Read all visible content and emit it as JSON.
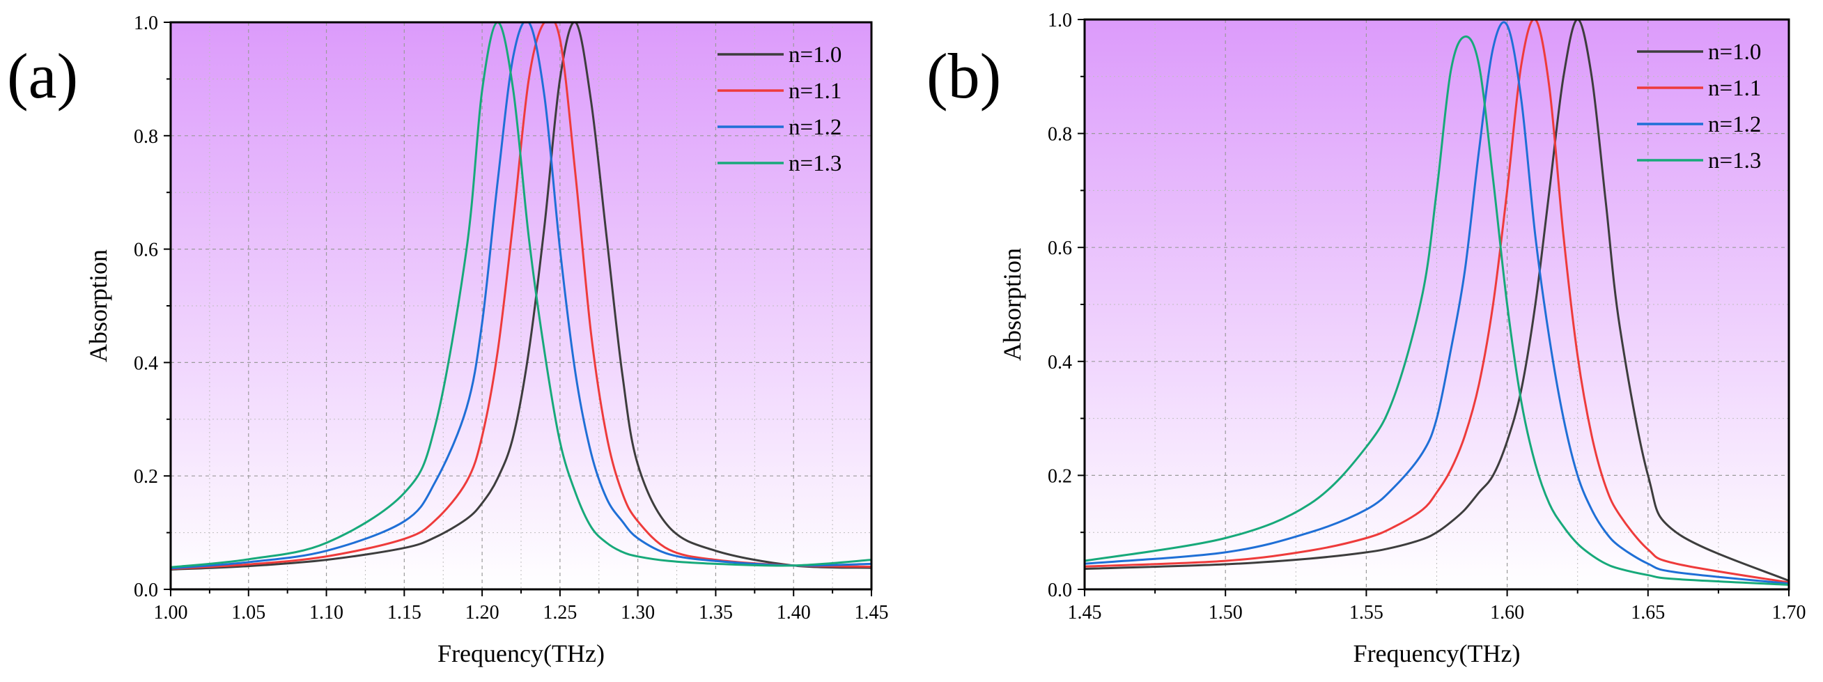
{
  "legend": [
    "n=1.0",
    "n=1.1",
    "n=1.2",
    "n=1.3"
  ],
  "colors": {
    "n=1.0": "#3d3d3d",
    "n=1.1": "#ee3b3b",
    "n=1.2": "#1f6fd6",
    "n=1.3": "#17a97a",
    "background_top": "#dc9bfb",
    "background_bottom": "#ffffff"
  },
  "chart_data": [
    {
      "panel_label": "(a)",
      "type": "line",
      "xlabel": "Frequency(THz)",
      "ylabel": "Absorption",
      "xlim": [
        1.0,
        1.45
      ],
      "ylim": [
        0.0,
        1.0
      ],
      "xticks": [
        "1.00",
        "1.05",
        "1.10",
        "1.15",
        "1.20",
        "1.25",
        "1.30",
        "1.35",
        "1.40",
        "1.45"
      ],
      "yticks": [
        "0.0",
        "0.2",
        "0.4",
        "0.6",
        "0.8",
        "1.0"
      ],
      "grid": true,
      "legend_position": "top-right",
      "x": [
        1.0,
        1.05,
        1.1,
        1.15,
        1.17,
        1.19,
        1.2,
        1.21,
        1.22,
        1.23,
        1.24,
        1.25,
        1.26,
        1.27,
        1.28,
        1.29,
        1.3,
        1.32,
        1.35,
        1.4,
        1.45
      ],
      "series": [
        {
          "name": "n=1.0",
          "values": [
            0.035,
            0.041,
            0.052,
            0.073,
            0.092,
            0.124,
            0.152,
            0.196,
            0.27,
            0.42,
            0.64,
            0.9,
            1.0,
            0.86,
            0.62,
            0.38,
            0.22,
            0.11,
            0.068,
            0.042,
            0.038
          ]
        },
        {
          "name": "n=1.1",
          "values": [
            0.036,
            0.044,
            0.058,
            0.089,
            0.122,
            0.19,
            0.27,
            0.42,
            0.65,
            0.9,
            1.0,
            0.97,
            0.73,
            0.45,
            0.27,
            0.17,
            0.12,
            0.07,
            0.052,
            0.042,
            0.04
          ]
        },
        {
          "name": "n=1.2",
          "values": [
            0.037,
            0.048,
            0.068,
            0.12,
            0.19,
            0.32,
            0.47,
            0.72,
            0.94,
            1.0,
            0.87,
            0.6,
            0.38,
            0.24,
            0.16,
            0.12,
            0.09,
            0.062,
            0.05,
            0.042,
            0.045
          ]
        },
        {
          "name": "n=1.3",
          "values": [
            0.039,
            0.053,
            0.082,
            0.17,
            0.29,
            0.6,
            0.88,
            1.0,
            0.88,
            0.62,
            0.42,
            0.26,
            0.17,
            0.11,
            0.082,
            0.066,
            0.058,
            0.05,
            0.045,
            0.042,
            0.052
          ]
        }
      ]
    },
    {
      "panel_label": "(b)",
      "type": "line",
      "xlabel": "Frequency(THz)",
      "ylabel": "Absorption",
      "xlim": [
        1.45,
        1.7
      ],
      "ylim": [
        0.0,
        1.0
      ],
      "xticks": [
        "1.45",
        "1.50",
        "1.55",
        "1.60",
        "1.65",
        "1.70"
      ],
      "yticks": [
        "0.0",
        "0.2",
        "0.4",
        "0.6",
        "0.8",
        "1.0"
      ],
      "grid": true,
      "legend_position": "top-right",
      "x": [
        1.45,
        1.5,
        1.53,
        1.55,
        1.56,
        1.57,
        1.575,
        1.58,
        1.585,
        1.59,
        1.595,
        1.6,
        1.605,
        1.61,
        1.615,
        1.62,
        1.625,
        1.63,
        1.635,
        1.64,
        1.65,
        1.66,
        1.7
      ],
      "series": [
        {
          "name": "n=1.0",
          "values": [
            0.036,
            0.044,
            0.054,
            0.065,
            0.074,
            0.088,
            0.1,
            0.118,
            0.14,
            0.17,
            0.2,
            0.26,
            0.35,
            0.5,
            0.7,
            0.9,
            1.0,
            0.9,
            0.68,
            0.46,
            0.2,
            0.1,
            0.015
          ]
        },
        {
          "name": "n=1.1",
          "values": [
            0.04,
            0.05,
            0.068,
            0.09,
            0.11,
            0.14,
            0.17,
            0.21,
            0.27,
            0.36,
            0.5,
            0.7,
            0.92,
            1.0,
            0.88,
            0.62,
            0.41,
            0.27,
            0.18,
            0.13,
            0.07,
            0.045,
            0.012
          ]
        },
        {
          "name": "n=1.2",
          "values": [
            0.045,
            0.065,
            0.1,
            0.14,
            0.18,
            0.24,
            0.3,
            0.42,
            0.56,
            0.77,
            0.95,
            0.99,
            0.86,
            0.62,
            0.44,
            0.3,
            0.2,
            0.14,
            0.1,
            0.075,
            0.045,
            0.03,
            0.01
          ]
        },
        {
          "name": "n=1.3",
          "values": [
            0.05,
            0.09,
            0.15,
            0.25,
            0.34,
            0.52,
            0.7,
            0.91,
            0.97,
            0.92,
            0.72,
            0.5,
            0.33,
            0.22,
            0.15,
            0.11,
            0.08,
            0.06,
            0.045,
            0.036,
            0.025,
            0.018,
            0.008
          ]
        }
      ]
    }
  ]
}
